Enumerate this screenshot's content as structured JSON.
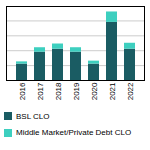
{
  "chart_data": {
    "type": "bar",
    "stacked": true,
    "categories": [
      "2016",
      "2017",
      "2018",
      "2019",
      "2020",
      "2021",
      "2022"
    ],
    "series": [
      {
        "name": "BSL CLO",
        "color": "#1a5c63",
        "values": [
          22,
          38,
          42,
          38,
          22,
          78,
          42
        ]
      },
      {
        "name": "Middle Market/Private Debt CLO",
        "color": "#3dcfbf",
        "values": [
          3,
          6,
          7,
          6,
          4,
          14,
          8
        ]
      }
    ],
    "ylim": [
      0,
      99.36
    ],
    "yticks": [
      0,
      20,
      40,
      60,
      80
    ],
    "grid": true,
    "legend": "bottom",
    "tick_labels": "x"
  }
}
